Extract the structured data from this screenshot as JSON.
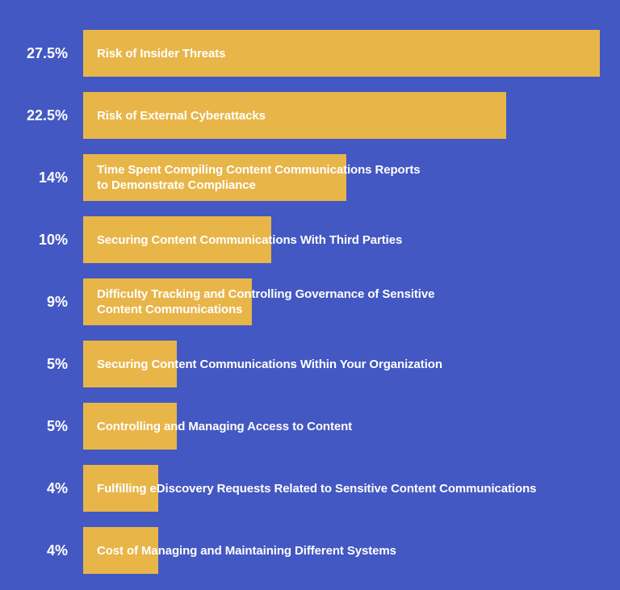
{
  "chart_data": {
    "type": "bar",
    "orientation": "horizontal",
    "xlim": [
      0,
      27.5
    ],
    "categories": [
      "Risk of Insider Threats",
      "Risk of External Cyberattacks",
      "Time Spent Compiling Content Communications Reports\nto Demonstrate Compliance",
      "Securing Content Communications With Third Parties",
      "Difficulty Tracking and Controlling Governance of Sensitive\nContent Communications",
      "Securing Content Communications Within Your Organization",
      "Controlling and Managing Access to Content",
      "Fulfilling eDiscovery Requests Related to Sensitive Content Communications",
      "Cost of Managing and Maintaining Different Systems"
    ],
    "values": [
      27.5,
      22.5,
      14,
      10,
      9,
      5,
      5,
      4,
      4
    ],
    "value_labels": [
      "27.5%",
      "22.5%",
      "14%",
      "10%",
      "9%",
      "5%",
      "5%",
      "4%",
      "4%"
    ],
    "bar_color": "#e8b548",
    "background_color": "#4358c2",
    "text_color": "#ffffff"
  }
}
